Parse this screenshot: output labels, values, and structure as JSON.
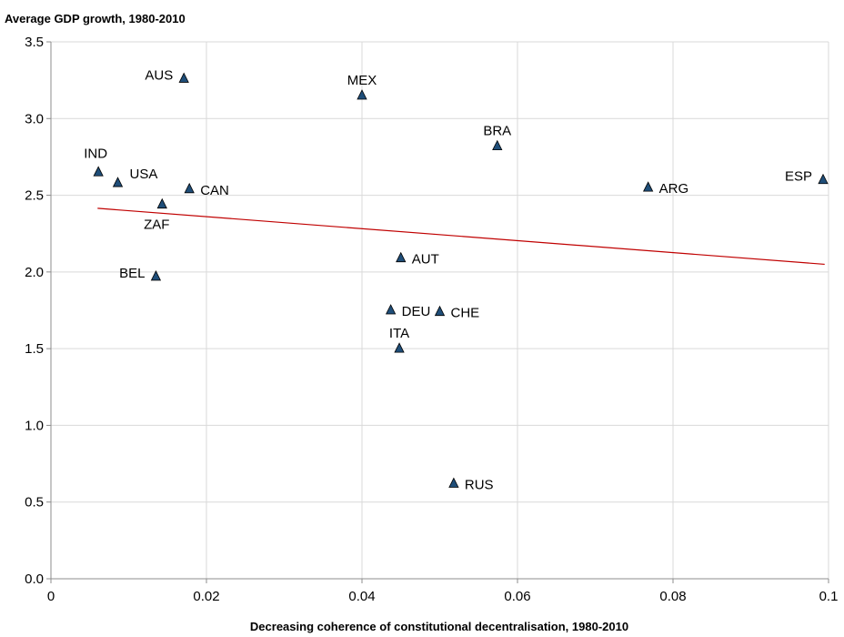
{
  "chart_data": {
    "type": "scatter",
    "ylabel": "Average GDP growth, 1980-2010",
    "xlabel": "Decreasing coherence of constitutional decentralisation, 1980-2010",
    "xlim": [
      0,
      0.1
    ],
    "ylim": [
      0.0,
      3.5
    ],
    "x_ticks": [
      0,
      0.02,
      0.04,
      0.06,
      0.08,
      0.1
    ],
    "x_tick_labels": [
      "0",
      "0.02",
      "0.04",
      "0.06",
      "0.08",
      "0.1"
    ],
    "y_ticks": [
      0.0,
      0.5,
      1.0,
      1.5,
      2.0,
      2.5,
      3.0,
      3.5
    ],
    "y_tick_labels": [
      "0.0",
      "0.5",
      "1.0",
      "1.5",
      "2.0",
      "2.5",
      "3.0",
      "3.5"
    ],
    "grid": true,
    "marker": "triangle",
    "marker_color": "#1f4e79",
    "trendline_color": "#c00000",
    "points": [
      {
        "label": "AUS",
        "x": 0.0171,
        "y": 3.26,
        "label_side": "left"
      },
      {
        "label": "MEX",
        "x": 0.04,
        "y": 3.15,
        "label_side": "above"
      },
      {
        "label": "BRA",
        "x": 0.0574,
        "y": 2.82,
        "label_side": "above"
      },
      {
        "label": "IND",
        "x": 0.0061,
        "y": 2.65,
        "label_side": "above-left"
      },
      {
        "label": "USA",
        "x": 0.0086,
        "y": 2.58,
        "label_side": "above-right"
      },
      {
        "label": "CAN",
        "x": 0.0178,
        "y": 2.54,
        "label_side": "right"
      },
      {
        "label": "ZAF",
        "x": 0.0143,
        "y": 2.44,
        "label_side": "below"
      },
      {
        "label": "ARG",
        "x": 0.0768,
        "y": 2.55,
        "label_side": "right"
      },
      {
        "label": "ESP",
        "x": 0.0993,
        "y": 2.6,
        "label_side": "left"
      },
      {
        "label": "AUT",
        "x": 0.045,
        "y": 2.09,
        "label_side": "right"
      },
      {
        "label": "BEL",
        "x": 0.0135,
        "y": 1.97,
        "label_side": "left"
      },
      {
        "label": "DEU",
        "x": 0.0437,
        "y": 1.75,
        "label_side": "right"
      },
      {
        "label": "CHE",
        "x": 0.05,
        "y": 1.74,
        "label_side": "right"
      },
      {
        "label": "ITA",
        "x": 0.0448,
        "y": 1.5,
        "label_side": "above"
      },
      {
        "label": "RUS",
        "x": 0.0518,
        "y": 0.62,
        "label_side": "right"
      }
    ],
    "trendline": {
      "x": [
        0.006,
        0.0995
      ],
      "y": [
        2.415,
        2.05
      ]
    }
  }
}
